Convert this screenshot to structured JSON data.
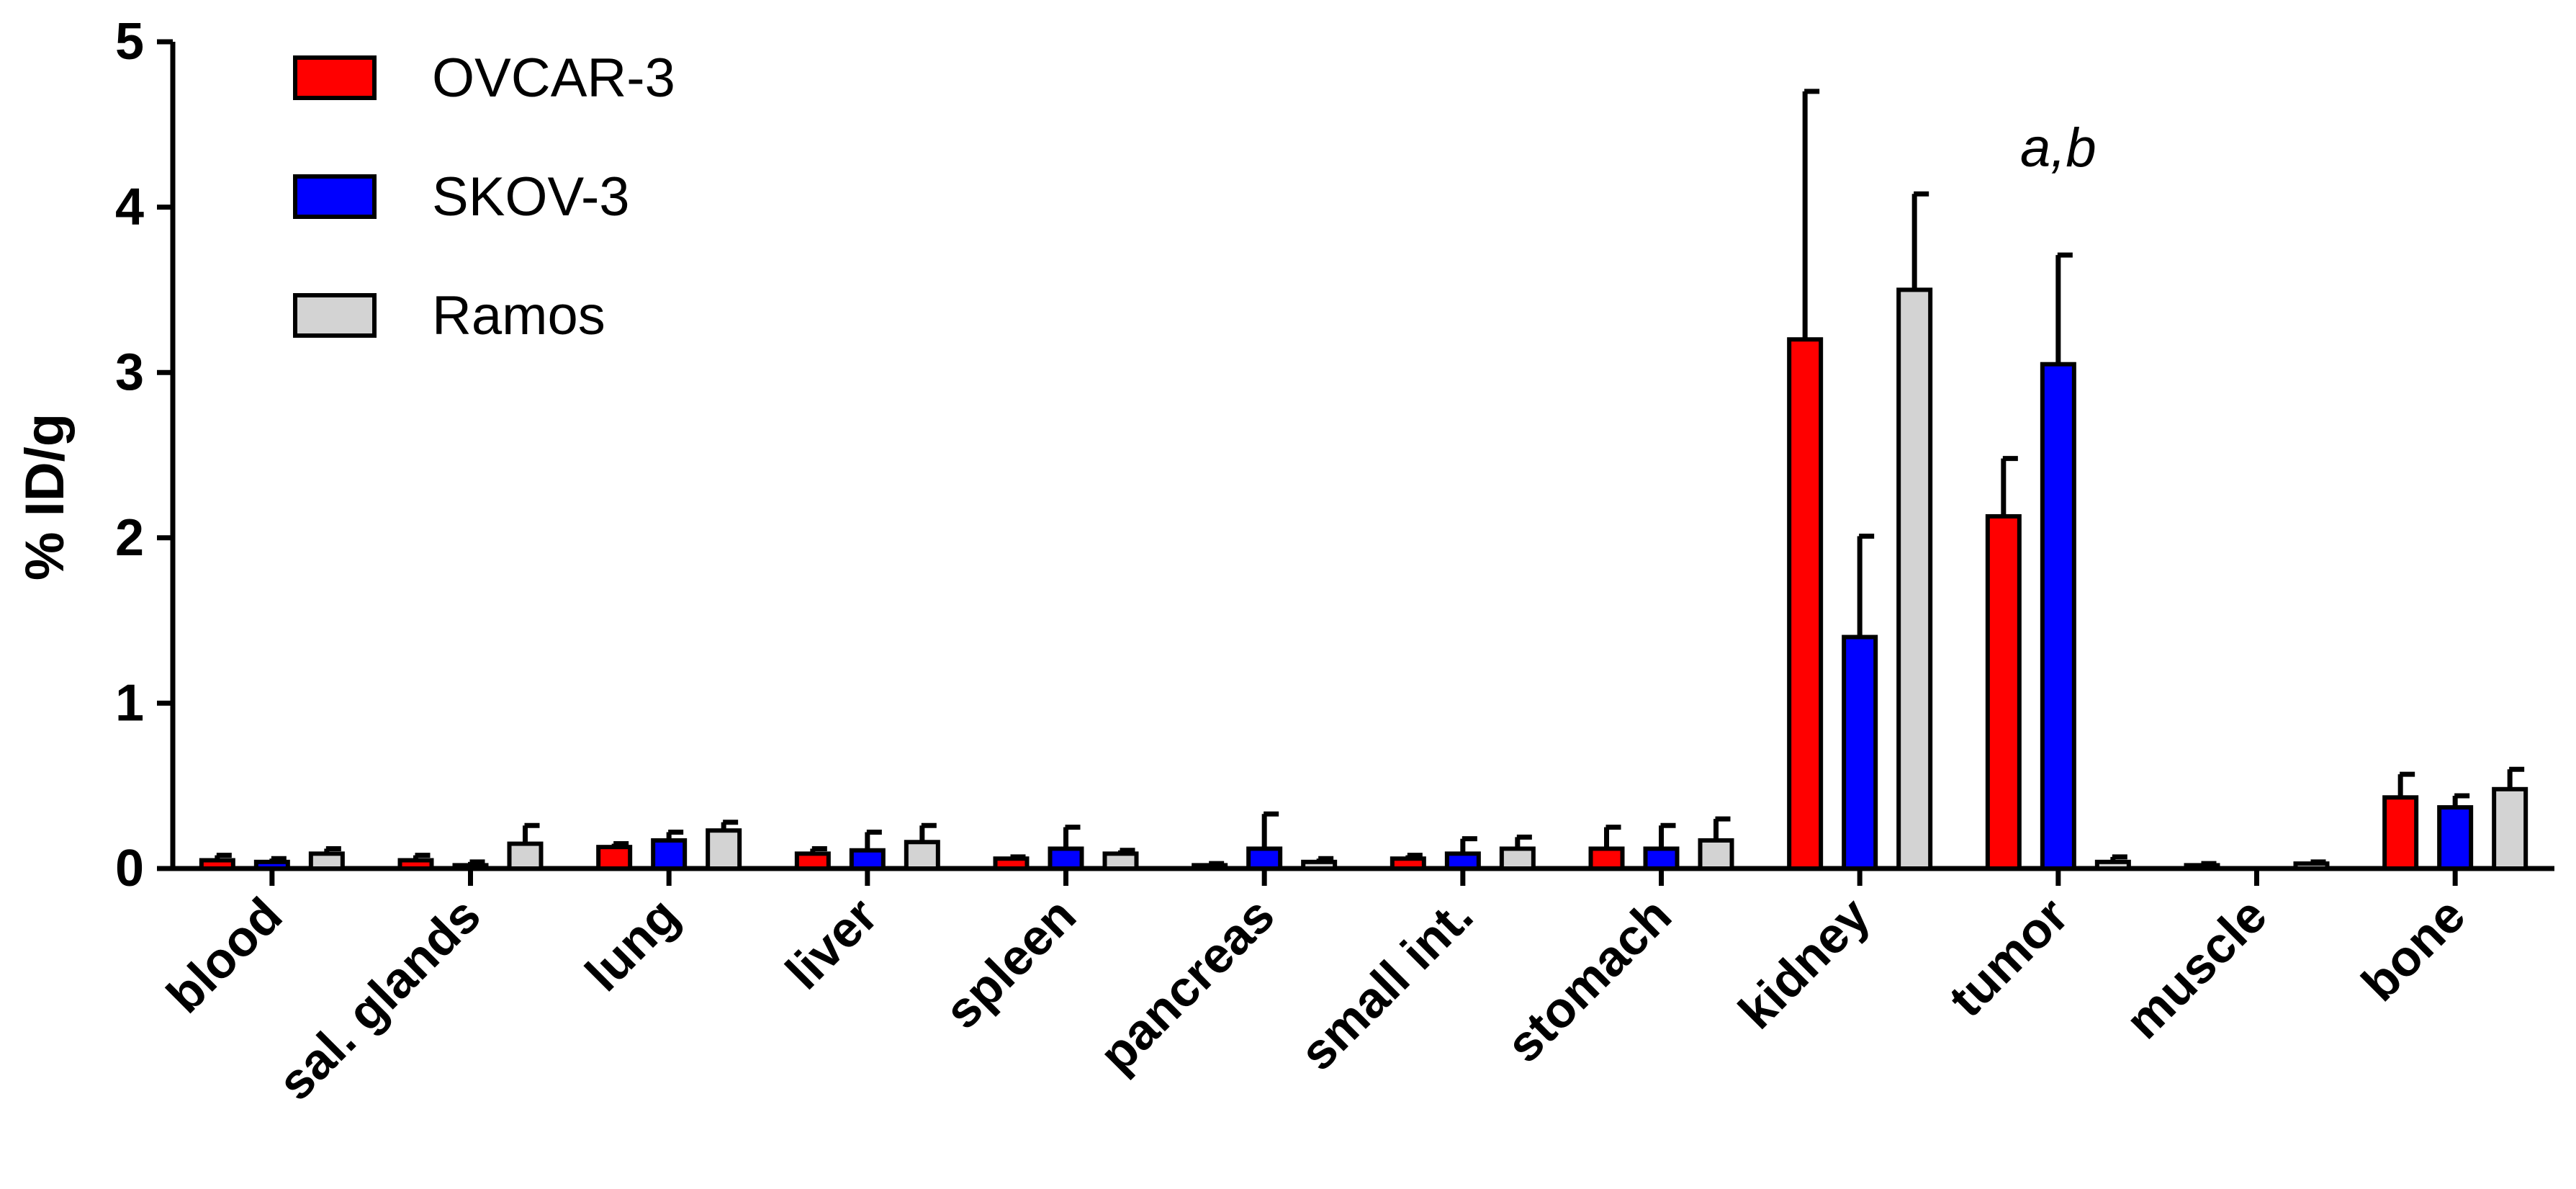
{
  "chart_data": {
    "type": "bar",
    "ylabel": "% ID/g",
    "xlabel": "",
    "ylim": [
      0,
      5
    ],
    "yticks": [
      "0",
      "1",
      "2",
      "3",
      "4",
      "5"
    ],
    "categories": [
      "blood",
      "sal. glands",
      "lung",
      "liver",
      "spleen",
      "pancreas",
      "small int.",
      "stomach",
      "kidney",
      "tumor",
      "muscle",
      "bone"
    ],
    "series": [
      {
        "name": "OVCAR-3",
        "color": "#ff0000",
        "values": [
          0.05,
          0.05,
          0.13,
          0.09,
          0.06,
          0.02,
          0.06,
          0.12,
          3.2,
          2.13,
          0.02,
          0.43
        ],
        "errors": [
          0.03,
          0.03,
          0.02,
          0.03,
          0.01,
          0.01,
          0.02,
          0.13,
          1.5,
          0.35,
          0.01,
          0.14
        ]
      },
      {
        "name": "SKOV-3",
        "color": "#0000ff",
        "values": [
          0.04,
          0.02,
          0.17,
          0.11,
          0.12,
          0.12,
          0.09,
          0.12,
          1.4,
          3.05,
          0.0,
          0.37
        ],
        "errors": [
          0.02,
          0.02,
          0.05,
          0.11,
          0.13,
          0.21,
          0.09,
          0.14,
          0.61,
          0.66,
          0.0,
          0.07
        ]
      },
      {
        "name": "Ramos",
        "color": "#d3d3d3",
        "values": [
          0.09,
          0.15,
          0.23,
          0.16,
          0.09,
          0.04,
          0.12,
          0.17,
          3.5,
          0.04,
          0.03,
          0.48
        ],
        "errors": [
          0.03,
          0.11,
          0.05,
          0.1,
          0.02,
          0.02,
          0.07,
          0.13,
          0.58,
          0.03,
          0.01,
          0.12
        ]
      }
    ],
    "legend_position": "top-left",
    "annotations": [
      {
        "text": "a,b",
        "category": "tumor",
        "y": 4.35
      }
    ],
    "grid": false
  }
}
